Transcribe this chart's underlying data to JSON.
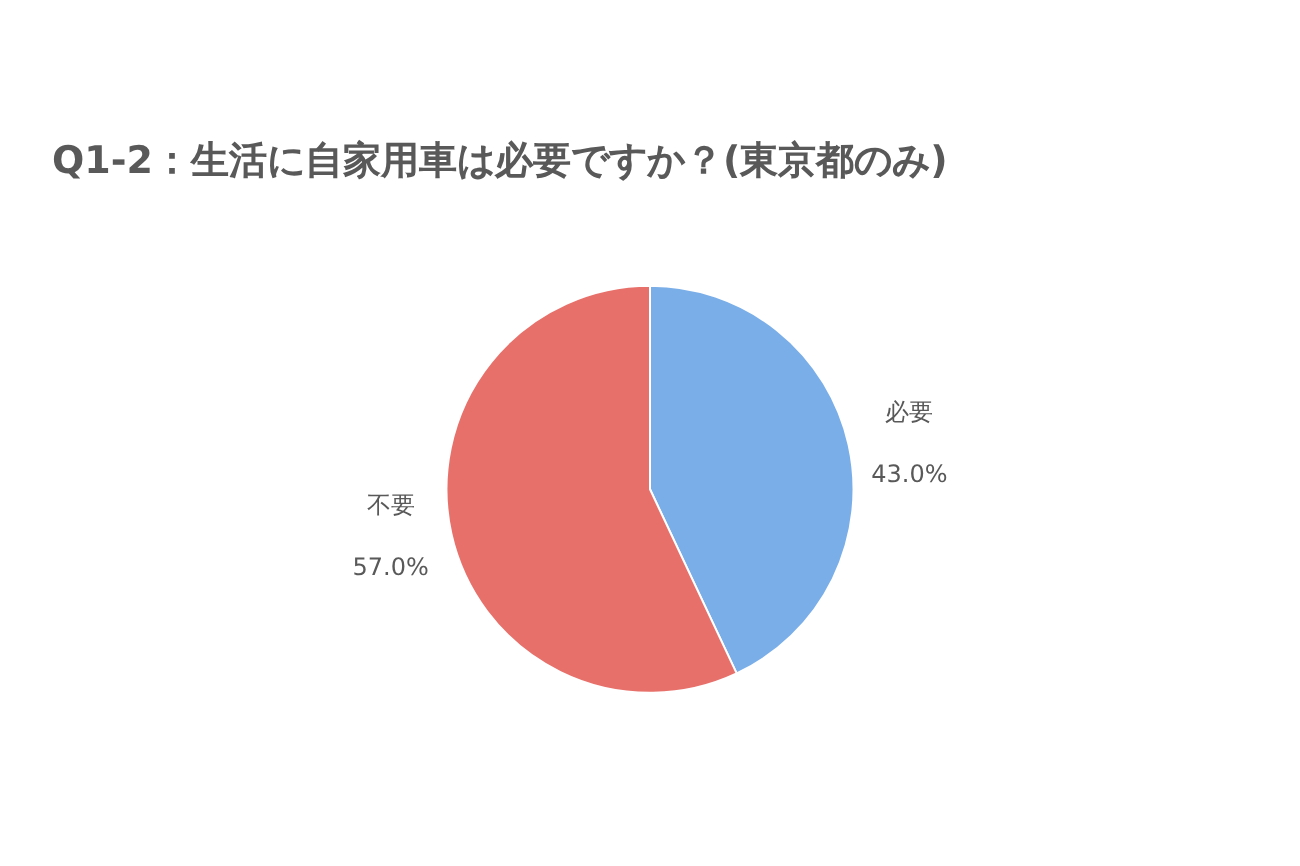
{
  "chart_data": {
    "type": "pie",
    "title": "Q1-2：生活に自家用車は必要ですか？(東京都のみ)",
    "categories": [
      "必要",
      "不要"
    ],
    "values": [
      43.0,
      57.0
    ],
    "value_labels": [
      "43.0%",
      "57.0%"
    ],
    "colors": [
      "#7aaee8",
      "#e8706a"
    ],
    "legend": false
  }
}
